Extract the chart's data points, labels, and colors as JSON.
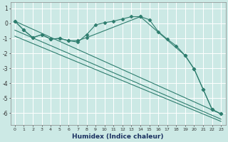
{
  "xlabel": "Humidex (Indice chaleur)",
  "bg_color": "#cce9e5",
  "grid_color": "#b0d8d3",
  "line_color": "#2e7d6e",
  "xlim": [
    -0.5,
    23.5
  ],
  "ylim": [
    -6.8,
    1.4
  ],
  "yticks": [
    1,
    0,
    -1,
    -2,
    -3,
    -4,
    -5,
    -6
  ],
  "xticks": [
    0,
    1,
    2,
    3,
    4,
    5,
    6,
    7,
    8,
    9,
    10,
    11,
    12,
    13,
    14,
    15,
    16,
    17,
    18,
    19,
    20,
    21,
    22,
    23
  ],
  "series": [
    {
      "x": [
        0,
        1,
        2,
        3,
        4,
        5,
        6,
        7,
        8,
        9,
        10,
        11,
        12,
        13,
        14,
        15,
        16,
        17,
        18,
        19,
        20,
        21,
        22,
        23
      ],
      "y": [
        0.15,
        -0.45,
        -0.95,
        -0.75,
        -1.05,
        -1.0,
        -1.15,
        -1.25,
        -0.75,
        -0.1,
        0.05,
        0.15,
        0.3,
        0.45,
        0.45,
        0.25,
        -0.55,
        -1.05,
        -1.5,
        -2.15,
        -3.05,
        -4.4,
        -5.75,
        -6.05
      ],
      "marker": "D",
      "markersize": 2.5
    },
    {
      "x": [
        0,
        1,
        2,
        3,
        4,
        5,
        6,
        7,
        8,
        14,
        19,
        20,
        21,
        22,
        23
      ],
      "y": [
        0.15,
        -0.45,
        -0.95,
        -0.75,
        -1.05,
        -1.0,
        -1.15,
        -1.15,
        -0.95,
        0.45,
        -2.15,
        -3.05,
        -4.4,
        -5.75,
        -6.05
      ],
      "marker": "D",
      "markersize": 2.5
    },
    {
      "x": [
        0,
        23
      ],
      "y": [
        0.15,
        -6.05
      ],
      "marker": null,
      "markersize": 0
    },
    {
      "x": [
        0,
        23
      ],
      "y": [
        -0.45,
        -6.4
      ],
      "marker": null,
      "markersize": 0
    },
    {
      "x": [
        0,
        23
      ],
      "y": [
        -0.85,
        -6.55
      ],
      "marker": null,
      "markersize": 0
    }
  ]
}
